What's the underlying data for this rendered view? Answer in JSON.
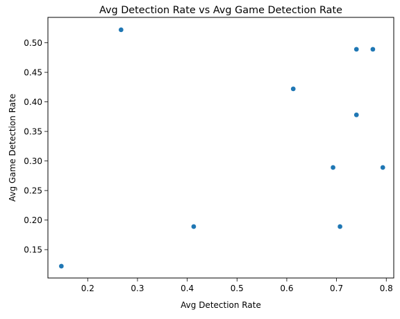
{
  "chart_data": {
    "type": "scatter",
    "title": "Avg Detection Rate vs Avg Game Detection Rate",
    "xlabel": "Avg Detection Rate",
    "ylabel": "Avg Game Detection Rate",
    "xlim": [
      0.12,
      0.815
    ],
    "ylim": [
      0.102,
      0.543
    ],
    "xticks": [
      0.2,
      0.3,
      0.4,
      0.5,
      0.6,
      0.7,
      0.8
    ],
    "xtick_labels": [
      "0.2",
      "0.3",
      "0.4",
      "0.5",
      "0.6",
      "0.7",
      "0.8"
    ],
    "yticks": [
      0.15,
      0.2,
      0.25,
      0.3,
      0.35,
      0.4,
      0.45,
      0.5
    ],
    "ytick_labels": [
      "0.15",
      "0.20",
      "0.25",
      "0.30",
      "0.35",
      "0.40",
      "0.45",
      "0.50"
    ],
    "grid": false,
    "marker_color": "#1f77b4",
    "points": [
      {
        "x": 0.147,
        "y": 0.122
      },
      {
        "x": 0.267,
        "y": 0.522
      },
      {
        "x": 0.413,
        "y": 0.189
      },
      {
        "x": 0.613,
        "y": 0.422
      },
      {
        "x": 0.693,
        "y": 0.289
      },
      {
        "x": 0.707,
        "y": 0.189
      },
      {
        "x": 0.74,
        "y": 0.378
      },
      {
        "x": 0.74,
        "y": 0.489
      },
      {
        "x": 0.773,
        "y": 0.489
      },
      {
        "x": 0.793,
        "y": 0.289
      }
    ]
  }
}
